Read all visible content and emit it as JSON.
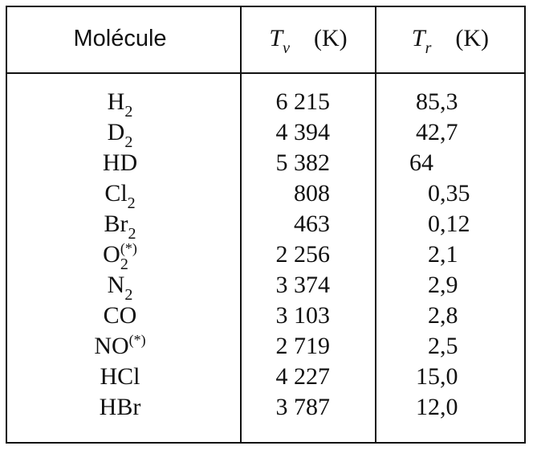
{
  "header": {
    "molecule": "Molécule",
    "tv": {
      "symbol": "T",
      "sub": "v",
      "unit": "(K)"
    },
    "tr": {
      "symbol": "T",
      "sub": "r",
      "unit": "(K)"
    }
  },
  "rows": [
    {
      "molecule": {
        "text": "H",
        "sub": "2"
      },
      "tv": "6 215",
      "tr": "85,3"
    },
    {
      "molecule": {
        "text": "D",
        "sub": "2"
      },
      "tv": "4 394",
      "tr": "42,7"
    },
    {
      "molecule": {
        "text": "HD"
      },
      "tv": "5 382",
      "tr": "64"
    },
    {
      "molecule": {
        "text": "Cl",
        "sub": "2"
      },
      "tv": "808",
      "tr": "0,35"
    },
    {
      "molecule": {
        "text": "Br",
        "sub": "2"
      },
      "tv": "463",
      "tr": "0,12"
    },
    {
      "molecule": {
        "text": "O",
        "sub": "2",
        "sup": "(*)"
      },
      "tv": "2 256",
      "tr": "2,1"
    },
    {
      "molecule": {
        "text": "N",
        "sub": "2"
      },
      "tv": "3 374",
      "tr": "2,9"
    },
    {
      "molecule": {
        "text": "CO"
      },
      "tv": "3 103",
      "tr": "2,8"
    },
    {
      "molecule": {
        "text": "NO",
        "sup": "(*)"
      },
      "tv": "2 719",
      "tr": "2,5"
    },
    {
      "molecule": {
        "text": "HCl"
      },
      "tv": "4 227",
      "tr": "15,0"
    },
    {
      "molecule": {
        "text": "HBr"
      },
      "tv": "3 787",
      "tr": "12,0"
    }
  ]
}
